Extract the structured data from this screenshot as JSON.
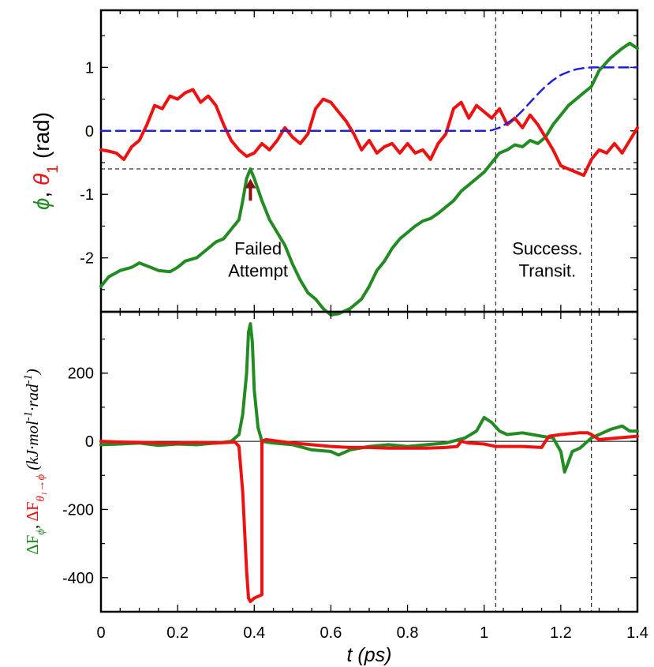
{
  "chart_data": [
    {
      "type": "line",
      "panel": "top",
      "ylabel_parts": [
        {
          "text": "ϕ",
          "color": "#228B22",
          "italic": true
        },
        {
          "text": ", ",
          "color": "#000000",
          "italic": false
        },
        {
          "text": "θ",
          "color": "#EE1111",
          "italic": true
        },
        {
          "text": "1",
          "color": "#EE1111",
          "italic": false,
          "sub": true
        },
        {
          "text": " (rad)",
          "color": "#000000",
          "italic": false
        }
      ],
      "xlim": [
        0,
        1.4
      ],
      "ylim": [
        -2.85,
        1.9
      ],
      "yticks": [
        -2,
        -1,
        0,
        1
      ],
      "ytick_labels": [
        "-2",
        "-1",
        "0",
        "1"
      ],
      "series": [
        {
          "key": "phi",
          "color": "#228B22",
          "style": "solid",
          "x": [
            0,
            0.02,
            0.05,
            0.08,
            0.1,
            0.13,
            0.15,
            0.18,
            0.2,
            0.22,
            0.25,
            0.28,
            0.3,
            0.32,
            0.34,
            0.36,
            0.37,
            0.38,
            0.39,
            0.4,
            0.42,
            0.44,
            0.46,
            0.48,
            0.5,
            0.52,
            0.54,
            0.56,
            0.58,
            0.6,
            0.62,
            0.65,
            0.68,
            0.7,
            0.72,
            0.74,
            0.76,
            0.78,
            0.8,
            0.82,
            0.84,
            0.86,
            0.88,
            0.9,
            0.92,
            0.94,
            0.96,
            0.98,
            1.0,
            1.02,
            1.04,
            1.06,
            1.08,
            1.1,
            1.12,
            1.14,
            1.16,
            1.18,
            1.2,
            1.22,
            1.25,
            1.28,
            1.3,
            1.33,
            1.36,
            1.38,
            1.4
          ],
          "y": [
            -2.45,
            -2.3,
            -2.2,
            -2.15,
            -2.08,
            -2.15,
            -2.2,
            -2.22,
            -2.15,
            -2.05,
            -2.0,
            -1.85,
            -1.75,
            -1.7,
            -1.55,
            -1.4,
            -1.1,
            -0.75,
            -0.6,
            -0.75,
            -1.1,
            -1.4,
            -1.6,
            -1.8,
            -2.1,
            -2.35,
            -2.55,
            -2.65,
            -2.8,
            -2.9,
            -2.88,
            -2.8,
            -2.65,
            -2.45,
            -2.2,
            -2.05,
            -1.85,
            -1.7,
            -1.6,
            -1.5,
            -1.42,
            -1.38,
            -1.3,
            -1.2,
            -1.1,
            -0.95,
            -0.85,
            -0.75,
            -0.65,
            -0.5,
            -0.35,
            -0.3,
            -0.22,
            -0.25,
            -0.15,
            -0.2,
            -0.1,
            0.1,
            0.25,
            0.4,
            0.55,
            0.7,
            0.95,
            1.15,
            1.3,
            1.38,
            1.3
          ]
        },
        {
          "key": "theta1",
          "color": "#EE1111",
          "style": "solid",
          "x": [
            0,
            0.02,
            0.04,
            0.06,
            0.08,
            0.1,
            0.12,
            0.14,
            0.16,
            0.18,
            0.2,
            0.22,
            0.24,
            0.26,
            0.28,
            0.3,
            0.32,
            0.34,
            0.36,
            0.38,
            0.4,
            0.42,
            0.44,
            0.46,
            0.48,
            0.5,
            0.52,
            0.54,
            0.56,
            0.58,
            0.6,
            0.62,
            0.64,
            0.66,
            0.68,
            0.7,
            0.72,
            0.74,
            0.76,
            0.78,
            0.8,
            0.82,
            0.84,
            0.86,
            0.88,
            0.9,
            0.92,
            0.94,
            0.96,
            0.98,
            1.0,
            1.02,
            1.04,
            1.06,
            1.08,
            1.1,
            1.12,
            1.14,
            1.16,
            1.18,
            1.2,
            1.22,
            1.24,
            1.26,
            1.28,
            1.3,
            1.32,
            1.34,
            1.36,
            1.38,
            1.4
          ],
          "y": [
            -0.3,
            -0.32,
            -0.35,
            -0.45,
            -0.25,
            -0.15,
            0.1,
            0.4,
            0.35,
            0.55,
            0.5,
            0.6,
            0.65,
            0.45,
            0.55,
            0.4,
            0.1,
            -0.15,
            -0.3,
            -0.4,
            -0.35,
            -0.2,
            -0.3,
            -0.15,
            0.05,
            -0.1,
            -0.2,
            -0.05,
            0.35,
            0.5,
            0.45,
            0.3,
            0.15,
            -0.05,
            -0.3,
            -0.15,
            -0.35,
            -0.25,
            -0.2,
            -0.35,
            -0.2,
            -0.35,
            -0.3,
            -0.45,
            -0.2,
            -0.05,
            0.35,
            0.45,
            0.2,
            0.4,
            0.3,
            0.2,
            0.35,
            0.1,
            0.2,
            0.05,
            0.25,
            0.1,
            -0.1,
            -0.3,
            -0.55,
            -0.6,
            -0.65,
            -0.7,
            -0.45,
            -0.3,
            -0.35,
            -0.2,
            -0.35,
            -0.15,
            0.05
          ]
        },
        {
          "key": "reference",
          "color": "#1F1FDD",
          "style": "dashed",
          "x": [
            0,
            1.0,
            1.02,
            1.04,
            1.06,
            1.08,
            1.1,
            1.12,
            1.14,
            1.16,
            1.18,
            1.2,
            1.22,
            1.24,
            1.26,
            1.28,
            1.3,
            1.4
          ],
          "y": [
            0,
            0,
            0.01,
            0.05,
            0.12,
            0.2,
            0.32,
            0.45,
            0.58,
            0.7,
            0.8,
            0.88,
            0.93,
            0.97,
            0.99,
            1.0,
            1.0,
            1.0
          ]
        }
      ],
      "hline": -0.6,
      "vlines": [
        1.03,
        1.28
      ],
      "annotations": [
        {
          "lines": [
            "Failed",
            "Attempt"
          ],
          "x": 0.41,
          "y": -1.95
        },
        {
          "lines": [
            "Success.",
            "Transit."
          ],
          "x": 1.165,
          "y": -1.95
        }
      ],
      "arrow": {
        "x": 0.39,
        "y_from": -1.1,
        "y_to": -0.78,
        "color": "#8B1010"
      }
    },
    {
      "type": "line",
      "panel": "bottom",
      "ylabel_parts": [
        {
          "text": "ΔF",
          "color": "#228B22",
          "italic": false
        },
        {
          "text": "ϕ",
          "color": "#228B22",
          "italic": true,
          "sub": true
        },
        {
          "text": ", ",
          "color": "#000000",
          "italic": false
        },
        {
          "text": "ΔF",
          "color": "#EE1111",
          "italic": false
        },
        {
          "text": "θ₁→ϕ",
          "color": "#EE1111",
          "italic": true,
          "sub": true
        },
        {
          "text": " (kJ·mol",
          "color": "#000000",
          "italic": true
        },
        {
          "text": "-1",
          "color": "#000000",
          "italic": true,
          "sup": true
        },
        {
          "text": "·rad",
          "color": "#000000",
          "italic": true
        },
        {
          "text": "-1",
          "color": "#000000",
          "italic": true,
          "sup": true
        },
        {
          "text": ")",
          "color": "#000000",
          "italic": true
        }
      ],
      "xlabel": "t (ps)",
      "xlim": [
        0,
        1.4
      ],
      "ylim": [
        -500,
        380
      ],
      "xticks": [
        0,
        0.2,
        0.4,
        0.6,
        0.8,
        1.0,
        1.2,
        1.4
      ],
      "xtick_labels": [
        "0",
        "0.2",
        "0.4",
        "0.6",
        "0.8",
        "1",
        "1.2",
        "1.4"
      ],
      "yticks": [
        -400,
        -200,
        0,
        200
      ],
      "ytick_labels": [
        "-400",
        "-200",
        "0",
        "200"
      ],
      "series": [
        {
          "key": "dF_phi",
          "color": "#228B22",
          "style": "solid",
          "x": [
            0,
            0.05,
            0.1,
            0.15,
            0.2,
            0.25,
            0.3,
            0.34,
            0.36,
            0.37,
            0.38,
            0.385,
            0.39,
            0.395,
            0.4,
            0.41,
            0.42,
            0.45,
            0.5,
            0.55,
            0.6,
            0.62,
            0.65,
            0.7,
            0.75,
            0.8,
            0.85,
            0.9,
            0.95,
            0.98,
            1.0,
            1.02,
            1.04,
            1.06,
            1.1,
            1.15,
            1.18,
            1.2,
            1.21,
            1.22,
            1.23,
            1.25,
            1.28,
            1.3,
            1.33,
            1.36,
            1.38,
            1.4
          ],
          "y": [
            -10,
            -8,
            -5,
            -12,
            -8,
            -10,
            -5,
            0,
            20,
            80,
            200,
            320,
            345,
            290,
            150,
            40,
            0,
            -5,
            -10,
            -25,
            -30,
            -40,
            -25,
            -15,
            -10,
            -15,
            -10,
            -5,
            10,
            30,
            70,
            55,
            30,
            20,
            25,
            15,
            10,
            -30,
            -90,
            -60,
            -30,
            -20,
            10,
            20,
            35,
            45,
            30,
            30
          ]
        },
        {
          "key": "dF_theta1_to_phi",
          "color": "#EE1111",
          "style": "solid",
          "x": [
            0,
            0.05,
            0.1,
            0.15,
            0.2,
            0.25,
            0.3,
            0.35,
            0.36,
            0.37,
            0.38,
            0.385,
            0.39,
            0.4,
            0.42,
            0.42,
            0.43,
            0.5,
            0.55,
            0.6,
            0.65,
            0.7,
            0.75,
            0.8,
            0.85,
            0.9,
            0.93,
            0.94,
            0.96,
            1.0,
            1.03,
            1.1,
            1.15,
            1.16,
            1.17,
            1.2,
            1.25,
            1.27,
            1.28,
            1.3,
            1.35,
            1.4
          ],
          "y": [
            0,
            -2,
            -3,
            -5,
            -5,
            -3,
            -5,
            -2,
            -15,
            -150,
            -380,
            -460,
            -470,
            -460,
            -450,
            0,
            5,
            -5,
            -10,
            -15,
            -18,
            -18,
            -20,
            -20,
            -20,
            -18,
            -15,
            0,
            -5,
            -8,
            -15,
            -15,
            -18,
            0,
            15,
            20,
            25,
            25,
            20,
            5,
            10,
            15
          ]
        }
      ],
      "vlines": [
        1.03,
        1.28
      ]
    }
  ]
}
